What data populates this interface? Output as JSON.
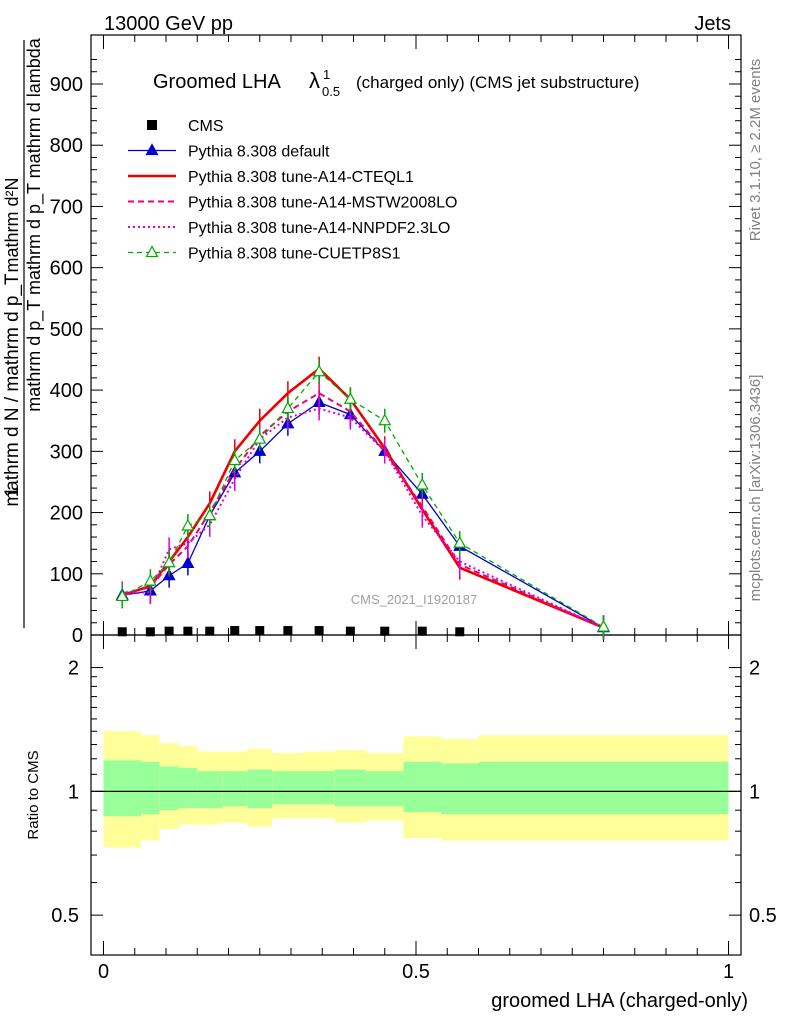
{
  "header": {
    "energy": "13000 GeV pp",
    "process": "Jets",
    "title_main": "Groomed LHA",
    "title_lambda": "λ",
    "title_sup": "1",
    "title_sub": "0.5",
    "title_rest": "(charged only) (CMS jet substructure)"
  },
  "side_labels": {
    "rivet": "Rivet 3.1.10, ≥ 2.2M events",
    "mcplots": "mcplots.cern.ch [arXiv:1306.3436]"
  },
  "watermark": "CMS_2021_I1920187",
  "axes": {
    "ylabel_top_numer": "mathrm d²N",
    "ylabel_top_numer2": "mathrm d p_T mathrm d p_T mathrm d lambda",
    "ylabel_one": "1",
    "ylabel_denom": "mathrm d N / mathrm d p_T",
    "ratio_ylabel": "Ratio to CMS",
    "xlabel": "groomed LHA (charged-only)"
  },
  "ticks": {
    "main_y": [
      "0",
      "100",
      "200",
      "300",
      "400",
      "500",
      "600",
      "700",
      "800",
      "900"
    ],
    "ratio_y": [
      "0.5",
      "1",
      "2"
    ],
    "x": [
      "0",
      "0.5",
      "1"
    ]
  },
  "legend": [
    {
      "label": "CMS",
      "color": "#000000",
      "style": "square"
    },
    {
      "label": "Pythia 8.308 default",
      "color": "#0000cc",
      "style": "solid-tri"
    },
    {
      "label": "Pythia 8.308 tune-A14-CTEQL1",
      "color": "#ee0000",
      "style": "solid-thick"
    },
    {
      "label": "Pythia 8.308 tune-A14-MSTW2008LO",
      "color": "#ee0077",
      "style": "dashed"
    },
    {
      "label": "Pythia 8.308 tune-A14-NNPDF2.3LO",
      "color": "#dd00dd",
      "style": "dotted"
    },
    {
      "label": "Pythia 8.308 tune-CUETP8S1",
      "color": "#00aa00",
      "style": "dashed-opentri"
    }
  ],
  "chart_data": [
    {
      "type": "line",
      "title": "Groomed LHA λ^1_0.5 (charged only) (CMS jet substructure)",
      "xlabel": "groomed LHA (charged-only)",
      "ylabel": "1/(dN/dpT) d²N/(dpT dλ)",
      "xlim": [
        -0.02,
        1.02
      ],
      "ylim": [
        0,
        980
      ],
      "cms": {
        "x": [
          0.03,
          0.075,
          0.105,
          0.135,
          0.17,
          0.21,
          0.25,
          0.295,
          0.345,
          0.395,
          0.45,
          0.51,
          0.57
        ],
        "y": [
          2,
          2,
          3,
          3,
          3,
          4,
          4,
          4,
          4,
          3,
          3,
          3,
          2
        ]
      },
      "series": [
        {
          "name": "Pythia 8.308 default",
          "x": [
            0.03,
            0.075,
            0.105,
            0.135,
            0.17,
            0.21,
            0.25,
            0.295,
            0.345,
            0.395,
            0.45,
            0.51,
            0.57,
            0.8
          ],
          "y": [
            65,
            72,
            97,
            117,
            195,
            265,
            300,
            345,
            380,
            360,
            300,
            230,
            145,
            12
          ]
        },
        {
          "name": "Pythia 8.308 tune-A14-CTEQL1",
          "x": [
            0.03,
            0.075,
            0.105,
            0.135,
            0.17,
            0.21,
            0.25,
            0.295,
            0.345,
            0.395,
            0.45,
            0.51,
            0.57,
            0.8
          ],
          "y": [
            65,
            80,
            120,
            160,
            215,
            300,
            350,
            395,
            435,
            385,
            305,
            205,
            110,
            12
          ]
        },
        {
          "name": "Pythia 8.308 tune-A14-MSTW2008LO",
          "x": [
            0.03,
            0.075,
            0.105,
            0.135,
            0.17,
            0.21,
            0.25,
            0.295,
            0.345,
            0.395,
            0.45,
            0.51,
            0.57,
            0.8
          ],
          "y": [
            68,
            78,
            115,
            145,
            200,
            270,
            325,
            365,
            395,
            365,
            300,
            210,
            115,
            12
          ]
        },
        {
          "name": "Pythia 8.308 tune-A14-NNPDF2.3LO",
          "x": [
            0.03,
            0.075,
            0.105,
            0.135,
            0.17,
            0.21,
            0.25,
            0.295,
            0.345,
            0.395,
            0.45,
            0.51,
            0.57,
            0.8
          ],
          "y": [
            67,
            70,
            140,
            150,
            180,
            255,
            320,
            355,
            370,
            355,
            300,
            195,
            120,
            12
          ]
        },
        {
          "name": "Pythia 8.308 tune-CUETP8S1",
          "x": [
            0.03,
            0.075,
            0.105,
            0.135,
            0.17,
            0.21,
            0.25,
            0.295,
            0.345,
            0.395,
            0.45,
            0.51,
            0.57,
            0.8
          ],
          "y": [
            63,
            88,
            118,
            178,
            195,
            285,
            320,
            370,
            430,
            385,
            350,
            245,
            150,
            13
          ]
        }
      ]
    },
    {
      "type": "area",
      "title": "Ratio to CMS",
      "ylabel": "Ratio to CMS",
      "xlim": [
        -0.02,
        1.02
      ],
      "ylim": [
        0.4,
        2.4
      ],
      "scale": "log",
      "bins": [
        0,
        0.06,
        0.09,
        0.12,
        0.15,
        0.19,
        0.23,
        0.27,
        0.32,
        0.37,
        0.42,
        0.48,
        0.54,
        0.6,
        1.0
      ],
      "band_outer_hi": [
        1.4,
        1.37,
        1.31,
        1.29,
        1.25,
        1.25,
        1.27,
        1.24,
        1.25,
        1.26,
        1.24,
        1.36,
        1.34,
        1.37
      ],
      "band_outer_lo": [
        0.73,
        0.76,
        0.81,
        0.83,
        0.83,
        0.84,
        0.82,
        0.86,
        0.86,
        0.84,
        0.85,
        0.77,
        0.76,
        0.76
      ],
      "band_inner_hi": [
        1.19,
        1.18,
        1.15,
        1.14,
        1.12,
        1.12,
        1.13,
        1.12,
        1.12,
        1.13,
        1.12,
        1.18,
        1.17,
        1.18
      ],
      "band_inner_lo": [
        0.87,
        0.88,
        0.9,
        0.91,
        0.91,
        0.92,
        0.91,
        0.93,
        0.93,
        0.92,
        0.92,
        0.89,
        0.88,
        0.88
      ],
      "reference": 1
    }
  ],
  "colors": {
    "band_inner": "#99ff99",
    "band_outer": "#ffff99"
  }
}
